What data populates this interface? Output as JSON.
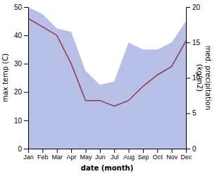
{
  "chart_data": {
    "type": "line",
    "categories": [
      "Jan",
      "Feb",
      "Mar",
      "Apr",
      "May",
      "Jun",
      "Jul",
      "Aug",
      "Sep",
      "Oct",
      "Nov",
      "Dec"
    ],
    "xlabel": "date (month)",
    "ylabel": "max temp (C)",
    "y2label": "med. precipitation\n(kg/m2)",
    "ylim": [
      0,
      50
    ],
    "yticks": [
      0,
      10,
      20,
      30,
      40,
      50
    ],
    "y2lim": [
      0,
      20
    ],
    "y2ticks": [
      0,
      5,
      10,
      15,
      20
    ],
    "series": [
      {
        "type": "area",
        "axis": "y2",
        "color": "#b8c0e8",
        "values": [
          20,
          19,
          17,
          16.5,
          11,
          9,
          9.5,
          15,
          14,
          14,
          15,
          18
        ]
      },
      {
        "type": "line",
        "color": "#8b3a52",
        "values": [
          46,
          43,
          40,
          30,
          17,
          17,
          15,
          17,
          22,
          26,
          29,
          38
        ]
      }
    ]
  }
}
